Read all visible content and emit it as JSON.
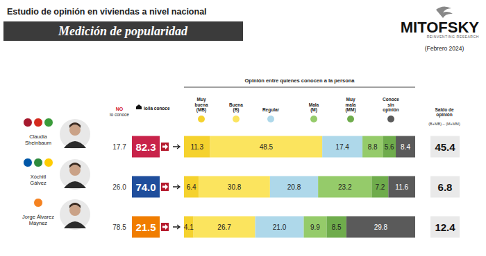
{
  "header": {
    "title": "Estudio de opinión en viviendas a nivel nacional",
    "banner": "Medición de popularidad",
    "brand": "MITOFSKY",
    "brand_tagline": "REINVENTING RESEARCH",
    "date": "(Febrero 2024)"
  },
  "awareness": {
    "no_label": "NO",
    "no_sublabel": "lo conoce",
    "yes_label": "lo/la conoce",
    "no_values": [
      17.7,
      26.0,
      78.5
    ],
    "no_value_labels": [
      "17.7",
      "26.0",
      "78.5"
    ],
    "yes_values": [
      82.3,
      74.0,
      21.5
    ],
    "yes_value_labels": [
      "82.3",
      "74.0",
      "21.5"
    ],
    "yes_colors": [
      "#c8234a",
      "#1f4e9c",
      "#f07d00"
    ]
  },
  "balance": {
    "title": "Saldo de opinión",
    "formula": "(B+MB) – (M+MM)",
    "values": [
      45.4,
      6.8,
      12.4
    ]
  },
  "chart_data": {
    "type": "bar",
    "orientation": "horizontal",
    "stacked": true,
    "data_labels": true,
    "tick_labels": false,
    "title": "Opinión entre quienes conocen a la persona",
    "categories": [
      "Claudia Sheinbaum",
      "Xóchitl Gálvez",
      "Jorge Álvarez Máynez"
    ],
    "xlim": [
      0,
      100
    ],
    "series": [
      {
        "name": "Muy buena (MB)",
        "color": "#f5d22e",
        "values": [
          11.3,
          6.4,
          4.1
        ],
        "value_labels": [
          "11.3",
          "6.4",
          "4.1"
        ]
      },
      {
        "name": "Buena (B)",
        "color": "#fbe45e",
        "values": [
          48.5,
          30.8,
          26.7
        ],
        "value_labels": [
          "48.5",
          "30.8",
          "26.7"
        ]
      },
      {
        "name": "Regular",
        "color": "#aed8ea",
        "values": [
          17.4,
          20.8,
          21.0
        ],
        "value_labels": [
          "17.4",
          "20.8",
          "21.0"
        ]
      },
      {
        "name": "Mala (M)",
        "color": "#95cb6a",
        "values": [
          8.8,
          23.2,
          9.9
        ],
        "value_labels": [
          "8.8",
          "23.2",
          "9.9"
        ]
      },
      {
        "name": "Muy mala (MM)",
        "color": "#6fac4c",
        "values": [
          5.6,
          7.2,
          8.5
        ],
        "value_labels": [
          "5.6",
          "7.2",
          "8.5"
        ]
      },
      {
        "name": "Conoce sin opinión",
        "color": "#5a5a5a",
        "values": [
          8.4,
          11.6,
          29.8
        ],
        "value_labels": [
          "8.4",
          "11.6",
          "29.8"
        ]
      }
    ]
  }
}
